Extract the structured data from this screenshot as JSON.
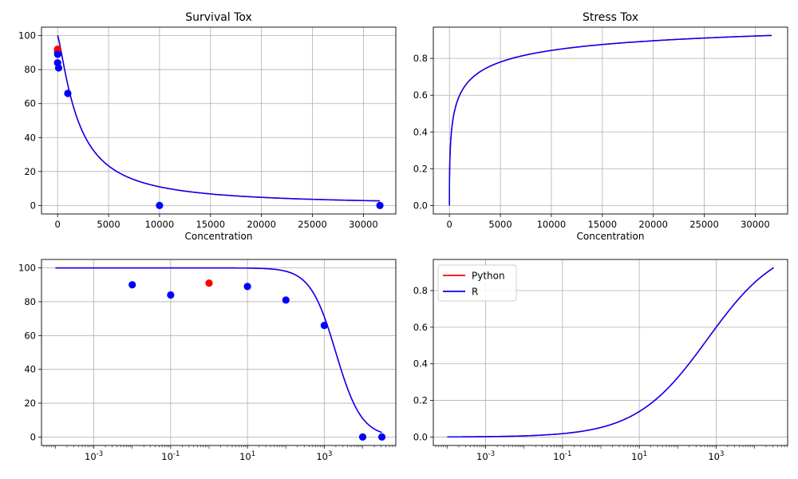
{
  "chart_data": [
    {
      "id": "survival_linear",
      "type": "line",
      "title": "Survival Tox",
      "xlabel": "Concentration",
      "ylabel": "",
      "xscale": "linear",
      "xlim": [
        -1580,
        33180
      ],
      "ylim": [
        -5,
        105
      ],
      "xticks": [
        0,
        5000,
        10000,
        15000,
        20000,
        25000,
        30000
      ],
      "yticks": [
        0,
        20,
        40,
        60,
        80,
        100
      ],
      "grid": true,
      "curve": {
        "model": "log_logistic",
        "top": 100,
        "ec50": 2000,
        "slope": 1.3,
        "xmin": 0.0001,
        "xmax": 31620
      },
      "series": [
        {
          "name": "Python",
          "color": "#ff0000",
          "kind": "line"
        },
        {
          "name": "R",
          "color": "#0000ff",
          "kind": "line"
        }
      ],
      "points": [
        {
          "x": 0.0001,
          "y": 92,
          "color": "#ff0000"
        },
        {
          "x": 0.01,
          "y": 90,
          "color": "#0000ff"
        },
        {
          "x": 0.1,
          "y": 84,
          "color": "#0000ff"
        },
        {
          "x": 1,
          "y": 91,
          "color": "#ff0000"
        },
        {
          "x": 10,
          "y": 89,
          "color": "#0000ff"
        },
        {
          "x": 100,
          "y": 81,
          "color": "#0000ff"
        },
        {
          "x": 1000,
          "y": 66,
          "color": "#0000ff"
        },
        {
          "x": 10000,
          "y": 0,
          "color": "#0000ff"
        },
        {
          "x": 31620,
          "y": 0,
          "color": "#0000ff"
        }
      ]
    },
    {
      "id": "stress_linear",
      "type": "line",
      "title": "Stress Tox",
      "xlabel": "Concentration",
      "ylabel": "",
      "xscale": "linear",
      "xlim": [
        -1580,
        33180
      ],
      "ylim": [
        -0.046,
        0.97
      ],
      "xticks": [
        0,
        5000,
        10000,
        15000,
        20000,
        25000,
        30000
      ],
      "yticks": [
        0,
        0.2,
        0.4,
        0.6,
        0.8
      ],
      "ytick_labels": [
        "0.0",
        "0.2",
        "0.4",
        "0.6",
        "0.8"
      ],
      "grid": true,
      "curve": {
        "model": "stress",
        "xmin": 0,
        "xmax": 31620
      },
      "series": [
        {
          "name": "Python",
          "color": "#ff0000",
          "kind": "line"
        },
        {
          "name": "R",
          "color": "#0000ff",
          "kind": "line"
        }
      ],
      "points": []
    },
    {
      "id": "survival_log",
      "type": "line",
      "title": "",
      "xlabel": "",
      "ylabel": "",
      "xscale": "log",
      "xlim": [
        4.34e-05,
        72800
      ],
      "ylim": [
        -5,
        105
      ],
      "xticks": [
        0.001,
        0.1,
        10,
        1000
      ],
      "xtick_labels": [
        "10",
        "10",
        "10",
        "10"
      ],
      "xtick_exponents": [
        "-3",
        "-1",
        "1",
        "3"
      ],
      "yticks": [
        0,
        20,
        40,
        60,
        80,
        100
      ],
      "grid": true,
      "curve": {
        "model": "log_logistic",
        "top": 100,
        "ec50": 2000,
        "slope": 1.3,
        "xmin": 0.0001,
        "xmax": 31620
      },
      "series": [
        {
          "name": "Python",
          "color": "#ff0000",
          "kind": "line"
        },
        {
          "name": "R",
          "color": "#0000ff",
          "kind": "line"
        }
      ],
      "points": [
        {
          "x": 0.01,
          "y": 90,
          "color": "#0000ff"
        },
        {
          "x": 0.1,
          "y": 84,
          "color": "#0000ff"
        },
        {
          "x": 1,
          "y": 91,
          "color": "#ff0000"
        },
        {
          "x": 10,
          "y": 89,
          "color": "#0000ff"
        },
        {
          "x": 100,
          "y": 81,
          "color": "#0000ff"
        },
        {
          "x": 1000,
          "y": 66,
          "color": "#0000ff"
        },
        {
          "x": 10000,
          "y": 0,
          "color": "#0000ff"
        },
        {
          "x": 31620,
          "y": 0,
          "color": "#0000ff"
        }
      ]
    },
    {
      "id": "stress_log",
      "type": "line",
      "title": "",
      "xlabel": "",
      "ylabel": "",
      "xscale": "log",
      "xlim": [
        4.34e-05,
        72800
      ],
      "ylim": [
        -0.046,
        0.97
      ],
      "xticks": [
        0.001,
        0.1,
        10,
        1000
      ],
      "xtick_labels": [
        "10",
        "10",
        "10",
        "10"
      ],
      "xtick_exponents": [
        "-3",
        "-1",
        "1",
        "3"
      ],
      "yticks": [
        0,
        0.2,
        0.4,
        0.6,
        0.8
      ],
      "ytick_labels": [
        "0.0",
        "0.2",
        "0.4",
        "0.6",
        "0.8"
      ],
      "grid": true,
      "legend": {
        "placement": "upper-left",
        "entries": [
          "Python",
          "R"
        ]
      },
      "curve": {
        "model": "stress",
        "xmin": 0.0001,
        "xmax": 31620
      },
      "series": [
        {
          "name": "Python",
          "color": "#ff0000",
          "kind": "line"
        },
        {
          "name": "R",
          "color": "#0000ff",
          "kind": "line"
        }
      ],
      "points": []
    }
  ]
}
